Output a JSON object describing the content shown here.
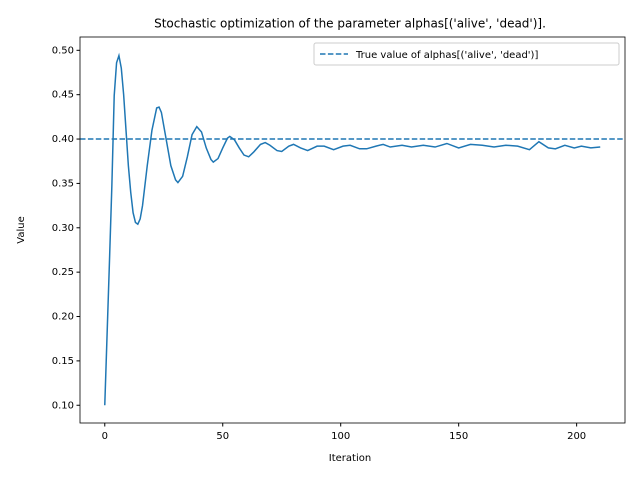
{
  "chart_data": {
    "type": "line",
    "title": "Stochastic optimization of the parameter alphas[('alive', 'dead')].",
    "x_label": "Iteration",
    "y_label": "Value",
    "x": [
      0,
      2,
      3,
      4,
      5,
      6,
      7,
      8,
      9,
      10,
      11,
      12,
      13,
      14,
      15,
      16,
      18,
      20,
      22,
      23,
      24,
      26,
      28,
      30,
      31,
      33,
      35,
      37,
      39,
      41,
      43,
      45,
      46,
      48,
      50,
      52,
      53,
      55,
      57,
      59,
      61,
      63,
      66,
      68,
      70,
      73,
      75,
      78,
      80,
      83,
      86,
      90,
      93,
      97,
      101,
      104,
      108,
      111,
      115,
      118,
      121,
      126,
      130,
      135,
      140,
      145,
      150,
      155,
      160,
      165,
      170,
      175,
      180,
      184,
      188,
      191,
      195,
      199,
      202,
      206,
      210
    ],
    "series": [
      {
        "color": "#1f77b4",
        "values": [
          0.1,
          0.263,
          0.347,
          0.449,
          0.486,
          0.494,
          0.48,
          0.45,
          0.41,
          0.37,
          0.34,
          0.317,
          0.306,
          0.304,
          0.31,
          0.325,
          0.37,
          0.41,
          0.435,
          0.436,
          0.43,
          0.4,
          0.37,
          0.354,
          0.351,
          0.358,
          0.38,
          0.405,
          0.414,
          0.408,
          0.39,
          0.377,
          0.374,
          0.378,
          0.39,
          0.401,
          0.403,
          0.399,
          0.39,
          0.382,
          0.38,
          0.385,
          0.394,
          0.396,
          0.393,
          0.387,
          0.386,
          0.392,
          0.394,
          0.39,
          0.387,
          0.392,
          0.392,
          0.388,
          0.392,
          0.393,
          0.389,
          0.389,
          0.392,
          0.394,
          0.391,
          0.393,
          0.391,
          0.393,
          0.391,
          0.395,
          0.39,
          0.394,
          0.393,
          0.391,
          0.393,
          0.392,
          0.388,
          0.397,
          0.39,
          0.389,
          0.393,
          0.39,
          0.392,
          0.39,
          0.391
        ]
      }
    ],
    "hline": {
      "name": "True value of alphas[('alive', 'dead')]",
      "value": 0.4,
      "color": "#1f77b4",
      "style": "dashed"
    },
    "xlim": [
      -10.5,
      220.5
    ],
    "ylim": [
      0.08,
      0.515
    ],
    "xticks": [
      0,
      50,
      100,
      150,
      200
    ],
    "yticks": [
      {
        "value": 0.1,
        "label": "0.10"
      },
      0.15,
      {
        "value": 0.2,
        "label": "0.20"
      },
      0.25,
      {
        "value": 0.3,
        "label": "0.30"
      },
      0.35,
      {
        "value": 0.4,
        "label": "0.40"
      },
      0.45,
      {
        "value": 0.5,
        "label": "0.50"
      }
    ],
    "grid": false,
    "legend": "upper right"
  }
}
